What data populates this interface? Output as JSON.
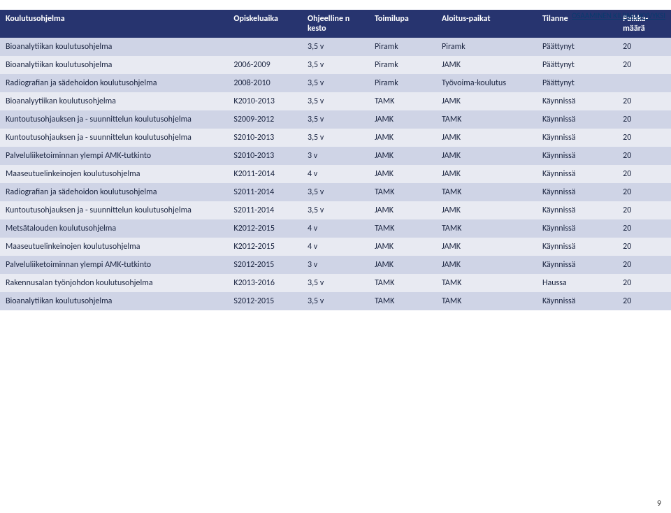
{
  "corner_label": "OSAAMINEN KILPAILUKYVYKSI",
  "page_number": "9",
  "colors": {
    "header_bg": "#27346f",
    "header_fg": "#ffffff",
    "band_dark": "#cfd4e6",
    "band_light": "#e8eaf2",
    "text": "#1a2440"
  },
  "columns": [
    "Koulutusohjelma",
    "Opiskeluaika",
    "Ohjeelline n kesto",
    "Toimilupa",
    "Aloitus-paikat",
    "Tilanne",
    "Paikka-määrä"
  ],
  "rows": [
    {
      "band": "dark",
      "c": [
        "Bioanalytiikan koulutusohjelma",
        "",
        "3,5 v",
        "Piramk",
        "Piramk",
        "Päättynyt",
        "20"
      ]
    },
    {
      "band": "light",
      "c": [
        "Bioanalytiikan koulutusohjelma",
        "2006-2009",
        "3,5 v",
        "Piramk",
        "JAMK",
        "Päättynyt",
        "20"
      ]
    },
    {
      "band": "dark",
      "c": [
        "Radiografian ja sädehoidon koulutusohjelma",
        "2008-2010",
        "3,5 v",
        "Piramk",
        "Työvoima-koulutus",
        "Päättynyt",
        ""
      ]
    },
    {
      "band": "light",
      "c": [
        "Bioanalyytiikan koulutusohjelma",
        "K2010-2013",
        "3,5 v",
        "TAMK",
        "JAMK",
        "Käynnissä",
        "20"
      ]
    },
    {
      "band": "dark",
      "c": [
        "Kuntoutusohjauksen ja - suunnittelun koulutusohjelma",
        "S2009-2012",
        "3,5 v",
        "JAMK",
        "TAMK",
        "Käynnissä",
        "20"
      ]
    },
    {
      "band": "light",
      "c": [
        "Kuntoutusohjauksen ja - suunnittelun koulutusohjelma",
        "S2010-2013",
        "3,5 v",
        "JAMK",
        "JAMK",
        "Käynnissä",
        "20"
      ]
    },
    {
      "band": "dark",
      "c": [
        "Palveluliiketoiminnan ylempi AMK-tutkinto",
        "S2010-2013",
        "3 v",
        "JAMK",
        "JAMK",
        "Käynnissä",
        "20"
      ]
    },
    {
      "band": "light",
      "c": [
        "Maaseutuelinkeinojen koulutusohjelma",
        "K2011-2014",
        "4 v",
        "JAMK",
        "JAMK",
        "Käynnissä",
        "20"
      ]
    },
    {
      "band": "dark",
      "c": [
        "Radiografian ja sädehoidon koulutusohjelma",
        "S2011-2014",
        "3,5 v",
        "TAMK",
        "TAMK",
        "Käynnissä",
        "20"
      ]
    },
    {
      "band": "light",
      "c": [
        "Kuntoutusohjauksen ja - suunnittelun koulutusohjelma",
        "S2011-2014",
        "3,5 v",
        "JAMK",
        "JAMK",
        "Käynnissä",
        "20"
      ]
    },
    {
      "band": "dark",
      "c": [
        "Metsätalouden koulutusohjelma",
        "K2012-2015",
        "4 v",
        "TAMK",
        "TAMK",
        "Käynnissä",
        "20"
      ]
    },
    {
      "band": "light",
      "c": [
        "Maaseutuelinkeinojen koulutusohjelma",
        "K2012-2015",
        "4 v",
        "JAMK",
        "JAMK",
        "Käynnissä",
        "20"
      ]
    },
    {
      "band": "dark",
      "c": [
        "Palveluliiketoiminnan ylempi AMK-tutkinto",
        "S2012-2015",
        "3 v",
        "JAMK",
        "JAMK",
        "Käynnissä",
        "20"
      ]
    },
    {
      "band": "light",
      "c": [
        "Rakennusalan työnjohdon koulutusohjelma",
        "K2013-2016",
        "3,5 v",
        "TAMK",
        "TAMK",
        "Haussa",
        "20"
      ]
    },
    {
      "band": "dark",
      "c": [
        "Bioanalytiikan koulutusohjelma",
        "S2012-2015",
        "3,5 v",
        "TAMK",
        "TAMK",
        "Käynnissä",
        "20"
      ]
    }
  ]
}
